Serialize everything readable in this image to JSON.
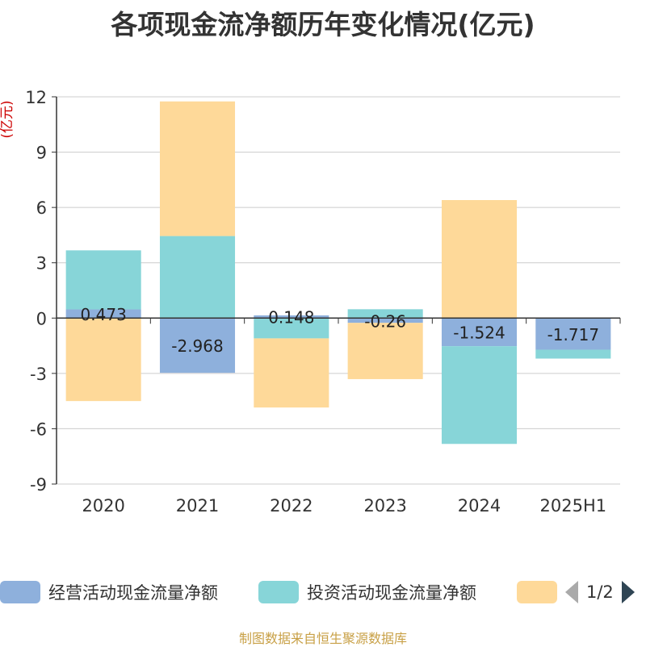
{
  "title": "各项现金流净额历年变化情况(亿元)",
  "source": "制图数据来自恒生聚源数据库",
  "legend_pager": "1/2",
  "colors": {
    "operating": "#8eb0dc",
    "investing": "#87d5d8",
    "financing": "#fed999",
    "unit": "#cc0000"
  },
  "chart_data": {
    "type": "bar",
    "stacked": true,
    "categories": [
      "2020",
      "2021",
      "2022",
      "2023",
      "2024",
      "2025H1"
    ],
    "ylabel": "(亿元)",
    "ylim": [
      -9,
      12
    ],
    "yticks": [
      -9,
      -6,
      -3,
      0,
      3,
      6,
      9,
      12
    ],
    "ytick_labels": [
      "-9",
      "-6",
      "-3",
      "0",
      "3",
      "6",
      "9",
      "12"
    ],
    "grid": true,
    "legend_position": "bottom",
    "series": [
      {
        "name": "经营活动现金流量净额",
        "color": "#8eb0dc",
        "values": [
          0.473,
          -2.968,
          0.148,
          -0.26,
          -1.524,
          -1.717
        ],
        "labels": [
          "0.473",
          "-2.968",
          "0.148",
          "-0.26",
          "-1.524",
          "-1.717"
        ]
      },
      {
        "name": "投资活动现金流量净额",
        "color": "#87d5d8",
        "values": [
          3.2,
          4.45,
          -1.1,
          0.48,
          -5.3,
          -0.48
        ]
      },
      {
        "name": "",
        "color": "#fed999",
        "values": [
          -4.5,
          7.3,
          -3.75,
          -3.05,
          6.4,
          0
        ]
      }
    ]
  }
}
